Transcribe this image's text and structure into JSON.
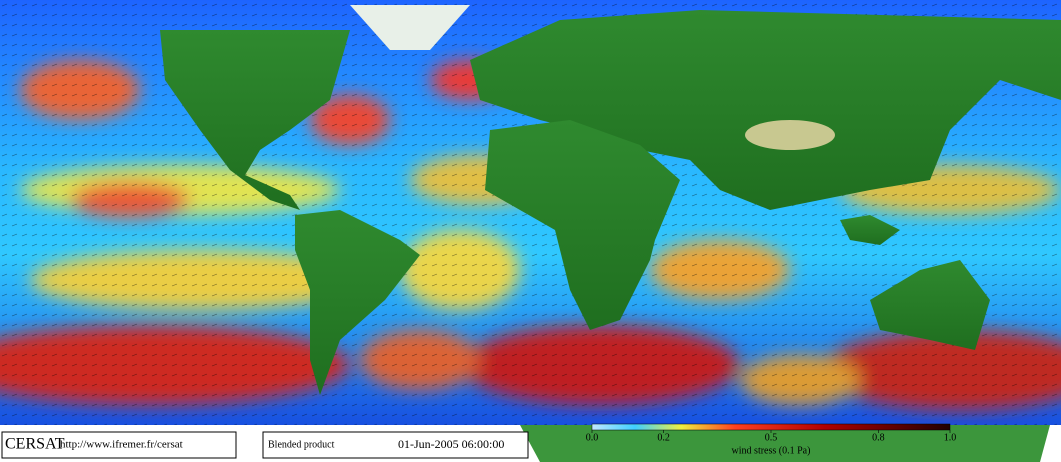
{
  "footer": {
    "agency": "CERSAT",
    "url": "http://www.ifremer.fr/cersat",
    "product": "Blended product",
    "date": "01-Jun-2005 06:00:00"
  },
  "colorbar": {
    "label": "wind stress (0.1 Pa)",
    "lim": [
      0,
      1
    ],
    "ticks": [
      {
        "value": 0,
        "label": "0.0"
      },
      0.2,
      0.5,
      0.8,
      {
        "value": 1,
        "label": "1.0"
      }
    ]
  }
}
